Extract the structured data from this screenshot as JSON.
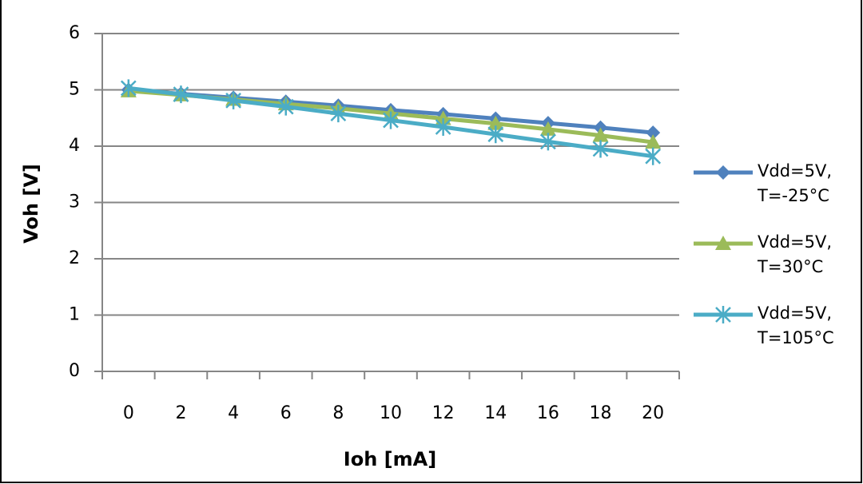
{
  "chart_data": {
    "type": "line",
    "x_label": "Ioh [mA]",
    "y_label": "Voh [V]",
    "categories": [
      "0",
      "2",
      "4",
      "6",
      "8",
      "10",
      "12",
      "14",
      "16",
      "18",
      "20"
    ],
    "series": [
      {
        "name": "Vdd=5V, T=-25°C",
        "color": "#4f81bd",
        "marker": "diamond",
        "values": [
          5.0,
          4.93,
          4.86,
          4.79,
          4.72,
          4.64,
          4.57,
          4.49,
          4.41,
          4.33,
          4.24
        ]
      },
      {
        "name": "Vdd=5V, T=30°C",
        "color": "#9bbb59",
        "marker": "triangle",
        "values": [
          4.98,
          4.91,
          4.83,
          4.75,
          4.67,
          4.58,
          4.49,
          4.4,
          4.3,
          4.19,
          4.07
        ]
      },
      {
        "name": "Vdd=5V, T=105°C",
        "color": "#4bacc6",
        "marker": "asterisk",
        "values": [
          5.03,
          4.92,
          4.81,
          4.7,
          4.58,
          4.46,
          4.34,
          4.21,
          4.08,
          3.95,
          3.82
        ]
      }
    ],
    "ylim": [
      0,
      6
    ],
    "yticks": [
      0,
      1,
      2,
      3,
      4,
      5,
      6
    ],
    "grid": true,
    "legend": "right"
  }
}
